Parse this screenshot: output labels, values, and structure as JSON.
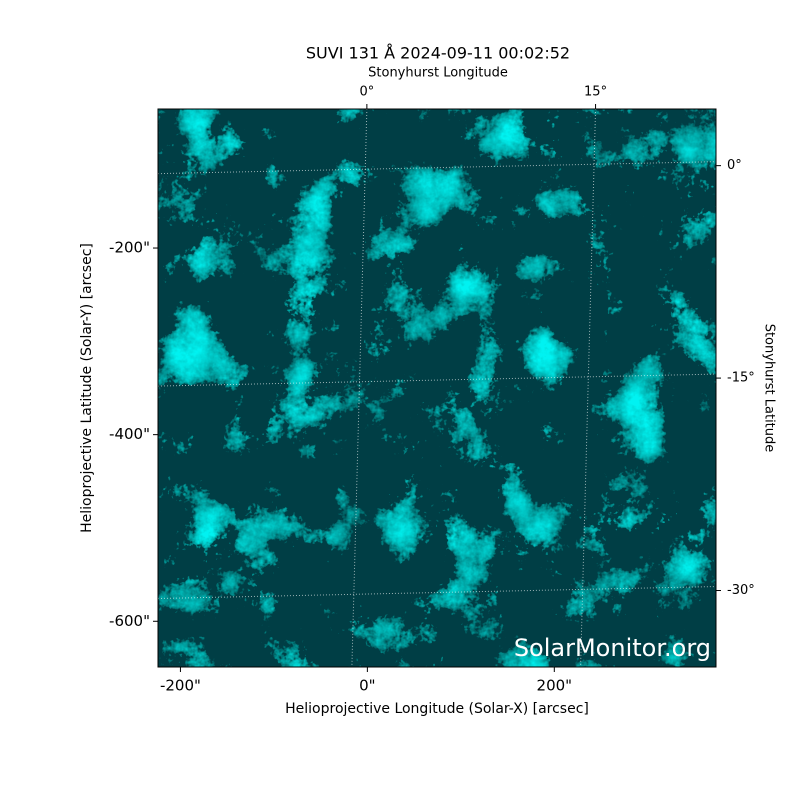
{
  "chart_data": {
    "type": "image",
    "title": "SUVI 131 Å 2024-09-11 00:02:52",
    "xlabel": "Helioprojective Longitude (Solar-X) [arcsec]",
    "ylabel": "Helioprojective Latitude (Solar-Y) [arcsec]",
    "x2label": "Stonyhurst Longitude",
    "y2label": "Stonyhurst Latitude",
    "xlim": [
      -224,
      373
    ],
    "ylim": [
      -649,
      -51
    ],
    "xticks": [
      {
        "value": -200,
        "label": "-200\""
      },
      {
        "value": 0,
        "label": "0\""
      },
      {
        "value": 200,
        "label": "200\""
      }
    ],
    "yticks": [
      {
        "value": -200,
        "label": "-200\""
      },
      {
        "value": -400,
        "label": "-400\""
      },
      {
        "value": -600,
        "label": "-600\""
      }
    ],
    "x2lim": [
      -13.7,
      22.9
    ],
    "x2ticks": [
      {
        "value": 0,
        "label": "0°"
      },
      {
        "value": 15,
        "label": "15°"
      }
    ],
    "y2lim": [
      -35.4,
      4.0
    ],
    "y2ticks": [
      {
        "value": 0,
        "label": "0°"
      },
      {
        "value": -15,
        "label": "-15°"
      },
      {
        "value": -30,
        "label": "-30°"
      }
    ],
    "grid": true,
    "color": "#00e6e6",
    "watermark": "SolarMonitor.org"
  }
}
